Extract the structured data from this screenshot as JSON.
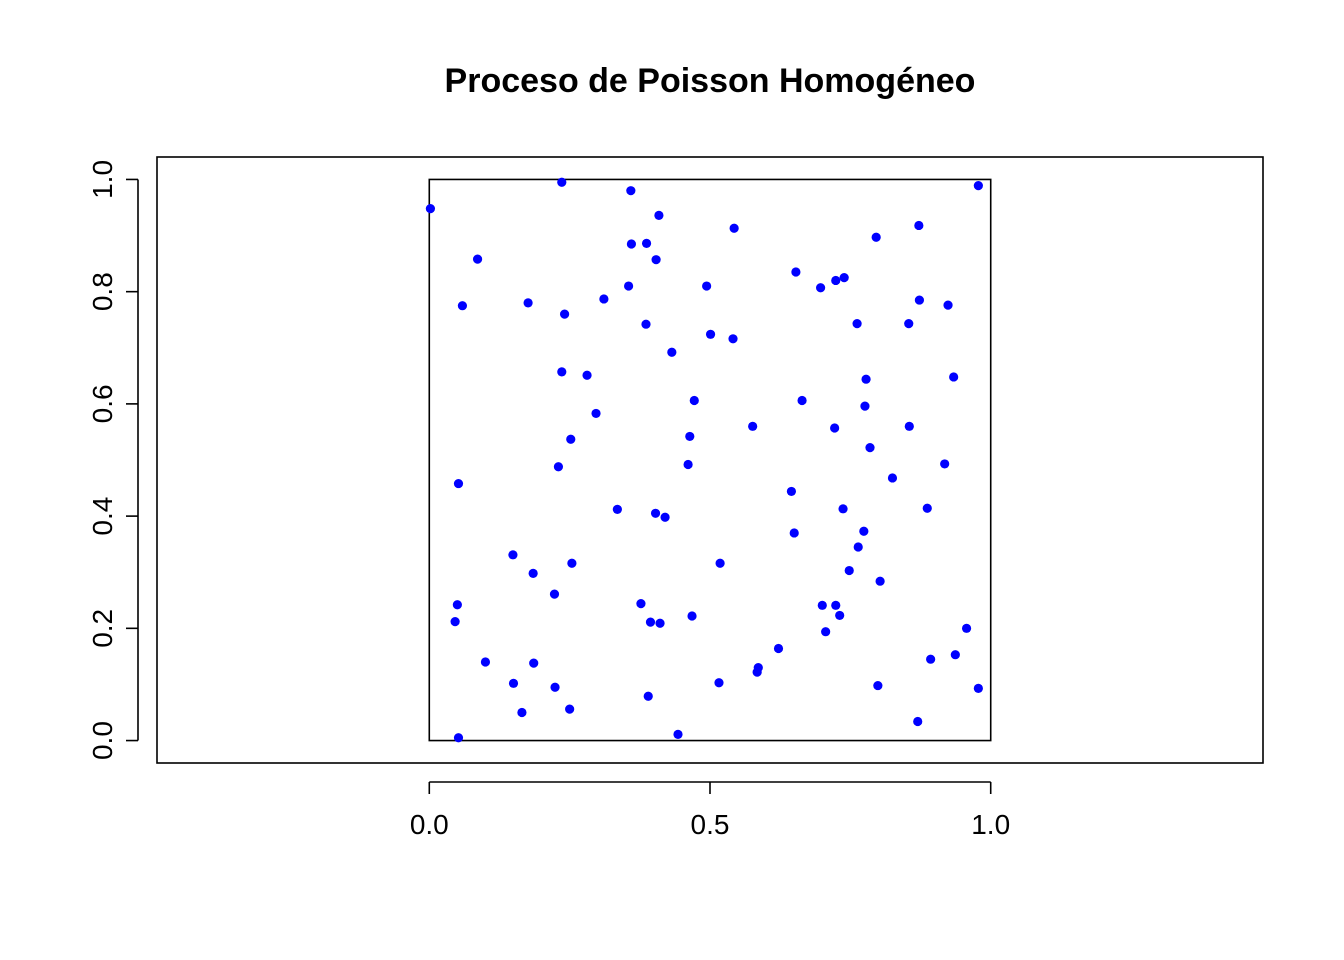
{
  "chart_data": {
    "type": "scatter",
    "title": "Proceso de Poisson Homogéneo",
    "xlabel": "",
    "ylabel": "",
    "xlim": [
      -0.485,
      1.485
    ],
    "ylim": [
      -0.04,
      1.04
    ],
    "x_ticks": [
      {
        "value": 0.0,
        "label": "0.0"
      },
      {
        "value": 0.5,
        "label": "0.5"
      },
      {
        "value": 1.0,
        "label": "1.0"
      }
    ],
    "y_ticks": [
      {
        "value": 0.0,
        "label": "0.0"
      },
      {
        "value": 0.2,
        "label": "0.2"
      },
      {
        "value": 0.4,
        "label": "0.4"
      },
      {
        "value": 0.6,
        "label": "0.6"
      },
      {
        "value": 0.8,
        "label": "0.8"
      },
      {
        "value": 1.0,
        "label": "1.0"
      }
    ],
    "window": {
      "xmin": 0,
      "xmax": 1,
      "ymin": 0,
      "ymax": 1
    },
    "grid": false,
    "legend": "none",
    "point_color": "#0000ff",
    "points": [
      [
        0.002,
        0.948
      ],
      [
        0.086,
        0.858
      ],
      [
        0.059,
        0.775
      ],
      [
        0.176,
        0.78
      ],
      [
        0.241,
        0.76
      ],
      [
        0.236,
        0.995
      ],
      [
        0.359,
        0.98
      ],
      [
        0.409,
        0.936
      ],
      [
        0.36,
        0.885
      ],
      [
        0.387,
        0.886
      ],
      [
        0.404,
        0.857
      ],
      [
        0.355,
        0.81
      ],
      [
        0.311,
        0.787
      ],
      [
        0.386,
        0.742
      ],
      [
        0.432,
        0.692
      ],
      [
        0.543,
        0.913
      ],
      [
        0.494,
        0.81
      ],
      [
        0.501,
        0.724
      ],
      [
        0.541,
        0.716
      ],
      [
        0.653,
        0.835
      ],
      [
        0.697,
        0.807
      ],
      [
        0.724,
        0.82
      ],
      [
        0.739,
        0.825
      ],
      [
        0.796,
        0.897
      ],
      [
        0.872,
        0.918
      ],
      [
        0.978,
        0.989
      ],
      [
        0.873,
        0.785
      ],
      [
        0.924,
        0.776
      ],
      [
        0.762,
        0.743
      ],
      [
        0.854,
        0.743
      ],
      [
        0.236,
        0.657
      ],
      [
        0.281,
        0.651
      ],
      [
        0.297,
        0.583
      ],
      [
        0.252,
        0.537
      ],
      [
        0.23,
        0.488
      ],
      [
        0.472,
        0.606
      ],
      [
        0.464,
        0.542
      ],
      [
        0.461,
        0.492
      ],
      [
        0.576,
        0.56
      ],
      [
        0.664,
        0.606
      ],
      [
        0.778,
        0.644
      ],
      [
        0.776,
        0.596
      ],
      [
        0.722,
        0.557
      ],
      [
        0.785,
        0.522
      ],
      [
        0.855,
        0.56
      ],
      [
        0.934,
        0.648
      ],
      [
        0.918,
        0.493
      ],
      [
        0.052,
        0.458
      ],
      [
        0.335,
        0.412
      ],
      [
        0.403,
        0.405
      ],
      [
        0.42,
        0.398
      ],
      [
        0.645,
        0.444
      ],
      [
        0.65,
        0.37
      ],
      [
        0.737,
        0.413
      ],
      [
        0.774,
        0.373
      ],
      [
        0.764,
        0.345
      ],
      [
        0.748,
        0.303
      ],
      [
        0.825,
        0.468
      ],
      [
        0.887,
        0.414
      ],
      [
        0.149,
        0.331
      ],
      [
        0.185,
        0.298
      ],
      [
        0.254,
        0.316
      ],
      [
        0.223,
        0.261
      ],
      [
        0.05,
        0.242
      ],
      [
        0.046,
        0.212
      ],
      [
        0.377,
        0.244
      ],
      [
        0.394,
        0.211
      ],
      [
        0.411,
        0.209
      ],
      [
        0.468,
        0.222
      ],
      [
        0.518,
        0.316
      ],
      [
        0.7,
        0.241
      ],
      [
        0.724,
        0.241
      ],
      [
        0.731,
        0.223
      ],
      [
        0.706,
        0.194
      ],
      [
        0.803,
        0.284
      ],
      [
        0.957,
        0.2
      ],
      [
        0.1,
        0.14
      ],
      [
        0.186,
        0.138
      ],
      [
        0.15,
        0.102
      ],
      [
        0.224,
        0.095
      ],
      [
        0.165,
        0.05
      ],
      [
        0.25,
        0.056
      ],
      [
        0.052,
        0.005
      ],
      [
        0.39,
        0.079
      ],
      [
        0.443,
        0.011
      ],
      [
        0.516,
        0.103
      ],
      [
        0.586,
        0.13
      ],
      [
        0.584,
        0.122
      ],
      [
        0.622,
        0.164
      ],
      [
        0.799,
        0.098
      ],
      [
        0.893,
        0.145
      ],
      [
        0.937,
        0.153
      ],
      [
        0.87,
        0.034
      ],
      [
        0.978,
        0.093
      ]
    ]
  }
}
